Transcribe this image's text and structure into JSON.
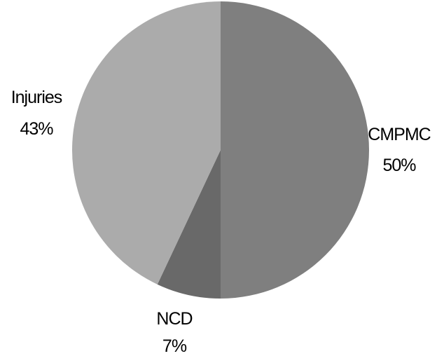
{
  "chart_data": {
    "type": "pie",
    "title": "",
    "start_angle_deg": 0,
    "direction": "clockwise",
    "legend": "none",
    "slices": [
      {
        "label": "CMPMC",
        "value": 50,
        "percent_label": "50%",
        "color": "#7f7f7f"
      },
      {
        "label": "NCD",
        "value": 7,
        "percent_label": "7%",
        "color": "#696969"
      },
      {
        "label": "Injuries",
        "value": 43,
        "percent_label": "43%",
        "color": "#ababab"
      }
    ]
  }
}
